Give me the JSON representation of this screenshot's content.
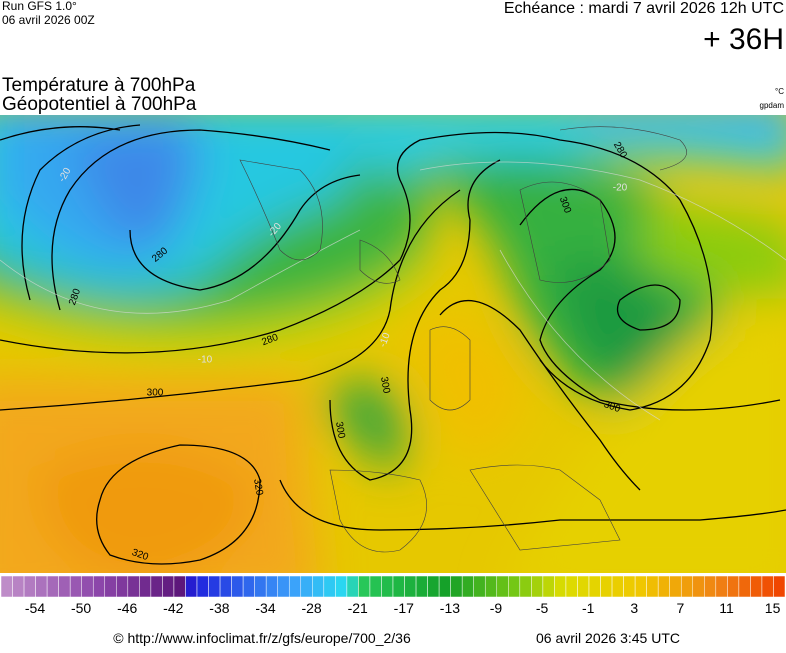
{
  "header": {
    "run": "Run GFS 1.0°",
    "run_date": "06 avril 2026 00Z",
    "echeance": "Echéance : mardi 7 avril 2026 12h UTC",
    "lead": "+ 36H",
    "title_1": "Température à 700hPa",
    "title_2": "Géopotentiel à 700hPa",
    "unit_temp": "°C",
    "unit_geo": "gpdam"
  },
  "map": {
    "contour_labels": [
      "280",
      "280",
      "280",
      "280",
      "300",
      "300",
      "300",
      "300",
      "300",
      "320",
      "320",
      "-20",
      "-20",
      "-10",
      "-10",
      "-20"
    ]
  },
  "colorbar": {
    "labels": [
      "-54",
      "-50",
      "-46",
      "-42",
      "-38",
      "-34",
      "-28",
      "-21",
      "-17",
      "-13",
      "-9",
      "-5",
      "-1",
      "3",
      "7",
      "11",
      "15"
    ]
  },
  "footer": {
    "url": "© http://www.infoclimat.fr/z/gfs/europe/700_2/36",
    "date": "06 avril 2026  3:45 UTC"
  }
}
